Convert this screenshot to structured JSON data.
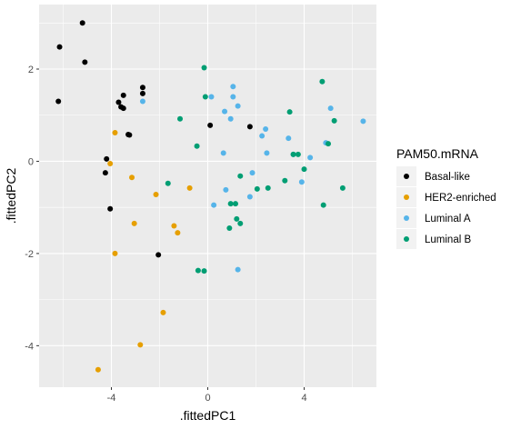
{
  "chart_data": {
    "type": "scatter",
    "xlabel": ".fittedPC1",
    "ylabel": ".fittedPC2",
    "xlim": [
      -7.0,
      7.0
    ],
    "ylim": [
      -4.9,
      3.4
    ],
    "x_ticks": [
      -4,
      0,
      4
    ],
    "y_ticks": [
      -4,
      -2,
      0,
      2
    ],
    "x_tick_labels": [
      "-4",
      "0",
      "4"
    ],
    "y_tick_labels": [
      "-4",
      "-2",
      "0",
      "2"
    ],
    "grid": true,
    "legend": {
      "title": "PAM50.mRNA",
      "position": "right"
    },
    "colors": {
      "panel": "#EBEBEB",
      "grid_major": "#FFFFFF",
      "tick": "#333333"
    },
    "series": [
      {
        "name": "Basal-like",
        "color": "#000000",
        "points": [
          [
            -5.2,
            3.0
          ],
          [
            -6.15,
            2.48
          ],
          [
            -5.1,
            2.15
          ],
          [
            -6.2,
            1.3
          ],
          [
            -3.5,
            1.43
          ],
          [
            -3.7,
            1.28
          ],
          [
            -3.6,
            1.18
          ],
          [
            -3.5,
            1.15
          ],
          [
            -3.3,
            0.58
          ],
          [
            -3.25,
            0.57
          ],
          [
            -2.7,
            1.6
          ],
          [
            -2.7,
            1.47
          ],
          [
            0.1,
            0.78
          ],
          [
            1.75,
            0.75
          ],
          [
            -4.2,
            0.05
          ],
          [
            -4.25,
            -0.25
          ],
          [
            -4.05,
            -1.03
          ],
          [
            -2.05,
            -2.03
          ]
        ]
      },
      {
        "name": "HER2-enriched",
        "color": "#E69F00",
        "points": [
          [
            -3.85,
            0.62
          ],
          [
            -4.05,
            -0.05
          ],
          [
            -3.15,
            -0.35
          ],
          [
            -0.75,
            -0.58
          ],
          [
            -2.15,
            -0.72
          ],
          [
            -3.05,
            -1.35
          ],
          [
            -1.4,
            -1.4
          ],
          [
            -1.25,
            -1.55
          ],
          [
            -3.85,
            -2.0
          ],
          [
            -1.85,
            -3.28
          ],
          [
            -2.8,
            -3.98
          ],
          [
            -4.55,
            -4.52
          ]
        ]
      },
      {
        "name": "Luminal A",
        "color": "#56B4E9",
        "points": [
          [
            0.15,
            1.4
          ],
          [
            1.05,
            1.62
          ],
          [
            1.05,
            1.4
          ],
          [
            -2.7,
            1.3
          ],
          [
            1.25,
            1.2
          ],
          [
            0.7,
            1.08
          ],
          [
            0.95,
            0.92
          ],
          [
            2.4,
            0.7
          ],
          [
            5.1,
            1.15
          ],
          [
            6.45,
            0.87
          ],
          [
            2.25,
            0.55
          ],
          [
            3.35,
            0.5
          ],
          [
            4.9,
            0.4
          ],
          [
            2.45,
            0.18
          ],
          [
            3.55,
            0.15
          ],
          [
            4.25,
            0.08
          ],
          [
            0.65,
            0.18
          ],
          [
            1.85,
            -0.25
          ],
          [
            3.9,
            -0.45
          ],
          [
            0.75,
            -0.62
          ],
          [
            0.25,
            -0.95
          ],
          [
            1.75,
            -0.77
          ],
          [
            1.25,
            -2.35
          ]
        ]
      },
      {
        "name": "Luminal B",
        "color": "#009E73",
        "points": [
          [
            -0.15,
            2.03
          ],
          [
            -0.1,
            1.4
          ],
          [
            -1.15,
            0.92
          ],
          [
            3.4,
            1.07
          ],
          [
            4.75,
            1.73
          ],
          [
            5.25,
            0.88
          ],
          [
            5.0,
            0.38
          ],
          [
            -0.45,
            0.33
          ],
          [
            3.75,
            0.15
          ],
          [
            3.55,
            0.15
          ],
          [
            4.0,
            -0.17
          ],
          [
            1.35,
            -0.32
          ],
          [
            3.2,
            -0.42
          ],
          [
            -1.65,
            -0.48
          ],
          [
            2.5,
            -0.58
          ],
          [
            2.05,
            -0.6
          ],
          [
            5.6,
            -0.58
          ],
          [
            0.95,
            -0.92
          ],
          [
            1.15,
            -0.92
          ],
          [
            4.8,
            -0.95
          ],
          [
            1.2,
            -1.25
          ],
          [
            1.35,
            -1.35
          ],
          [
            0.9,
            -1.45
          ],
          [
            -0.4,
            -2.37
          ],
          [
            -0.15,
            -2.38
          ]
        ]
      }
    ]
  }
}
